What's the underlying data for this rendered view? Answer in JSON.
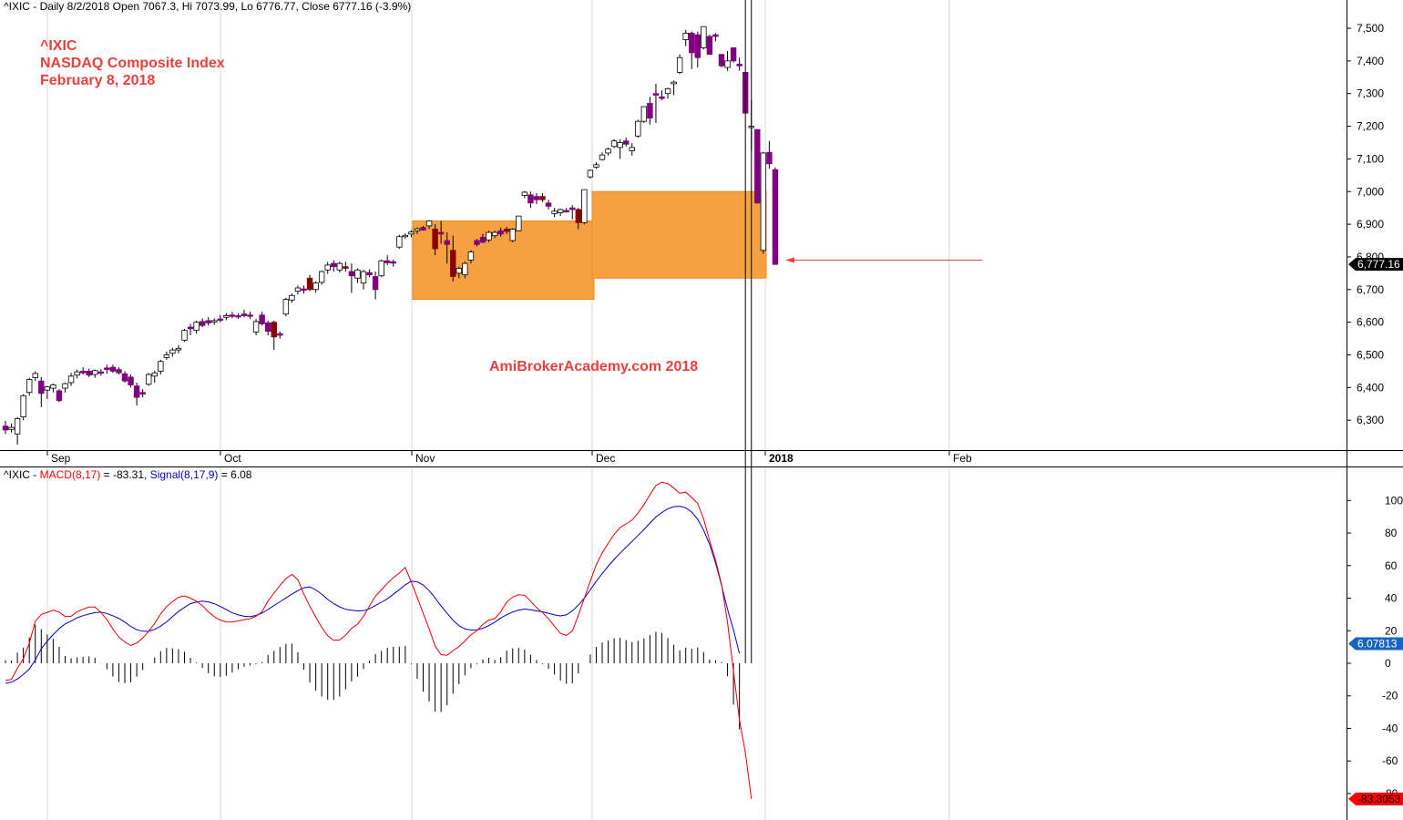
{
  "header": {
    "price_info": "^IXIC - Daily 8/2/2018 Open 7067.3, Hi 7073.99, Lo 6776.77, Close 6777.16 (-3.9%)",
    "macd_prefix": "^IXIC - ",
    "macd_label": "MACD(8,17)",
    "macd_value": " = -83.31, ",
    "signal_label": "Signal(8,17,9)",
    "signal_value": " = 6.08"
  },
  "annotation": {
    "symbol": "^IXIC",
    "name": "NASDAQ Composite Index",
    "date": "February 8, 2018"
  },
  "watermark": "AmiBrokerAcademy.com 2018",
  "colors": {
    "up_candle": "#ffffff",
    "down_candle": "#800080",
    "down_candle_dark": "#8b0000",
    "box_fill": "#f7a041",
    "annotation": "#e8413c",
    "macd_line": "#e00000",
    "signal_line": "#0000c0",
    "price_badge": "#000000",
    "macd_badge": "#ff0000",
    "signal_badge": "#1565c0"
  },
  "chart_data": [
    {
      "type": "candlestick",
      "title": "^IXIC",
      "x_tick_labels": [
        "Sep",
        "Oct",
        "Nov",
        "Dec",
        "2018",
        "Feb"
      ],
      "y_tick_labels": [
        "6,300",
        "6,400",
        "6,500",
        "6,600",
        "6,700",
        "6,800",
        "6,900",
        "7,000",
        "7,100",
        "7,200",
        "7,300",
        "7,400",
        "7,500"
      ],
      "ylim": [
        6200,
        7530
      ],
      "last_price_label": "6,777.16",
      "grid": "vertical at month starts",
      "highlight_boxes": [
        {
          "from": "Nov",
          "to": "end of Nov",
          "low": 6670,
          "high": 6910
        },
        {
          "from": "Dec",
          "to": "end of Dec",
          "low": 6735,
          "high": 7000
        }
      ],
      "arrow": {
        "from_price": 6790,
        "to_price": 6790,
        "direction": "left"
      },
      "ohlc": [
        [
          6282,
          6298,
          6258,
          6270
        ],
        [
          6272,
          6290,
          6262,
          6278
        ],
        [
          6258,
          6310,
          6225,
          6305
        ],
        [
          6310,
          6380,
          6300,
          6375
        ],
        [
          6385,
          6430,
          6375,
          6425
        ],
        [
          6430,
          6450,
          6420,
          6443
        ],
        [
          6420,
          6432,
          6340,
          6382
        ],
        [
          6392,
          6405,
          6365,
          6402
        ],
        [
          6398,
          6412,
          6385,
          6408
        ],
        [
          6390,
          6395,
          6355,
          6360
        ],
        [
          6398,
          6415,
          6385,
          6412
        ],
        [
          6415,
          6445,
          6405,
          6435
        ],
        [
          6438,
          6455,
          6428,
          6448
        ],
        [
          6450,
          6462,
          6440,
          6445
        ],
        [
          6450,
          6458,
          6432,
          6438
        ],
        [
          6440,
          6455,
          6430,
          6452
        ],
        [
          6448,
          6456,
          6436,
          6445
        ],
        [
          6460,
          6470,
          6442,
          6455
        ],
        [
          6462,
          6470,
          6445,
          6450
        ],
        [
          6455,
          6462,
          6440,
          6445
        ],
        [
          6442,
          6450,
          6415,
          6420
        ],
        [
          6432,
          6440,
          6400,
          6408
        ],
        [
          6405,
          6415,
          6345,
          6370
        ],
        [
          6385,
          6395,
          6370,
          6380
        ],
        [
          6410,
          6445,
          6405,
          6440
        ],
        [
          6435,
          6452,
          6415,
          6445
        ],
        [
          6450,
          6485,
          6440,
          6480
        ],
        [
          6492,
          6510,
          6485,
          6500
        ],
        [
          6505,
          6522,
          6495,
          6515
        ],
        [
          6515,
          6530,
          6505,
          6520
        ],
        [
          6545,
          6580,
          6540,
          6575
        ],
        [
          6585,
          6595,
          6560,
          6580
        ],
        [
          6575,
          6605,
          6565,
          6600
        ],
        [
          6602,
          6612,
          6585,
          6590
        ],
        [
          6605,
          6615,
          6590,
          6598
        ],
        [
          6602,
          6612,
          6592,
          6605
        ],
        [
          6610,
          6622,
          6600,
          6606
        ],
        [
          6615,
          6628,
          6606,
          6620
        ],
        [
          6622,
          6632,
          6612,
          6618
        ],
        [
          6620,
          6628,
          6610,
          6616
        ],
        [
          6625,
          6638,
          6615,
          6620
        ],
        [
          6622,
          6632,
          6610,
          6618
        ],
        [
          6570,
          6610,
          6560,
          6602
        ],
        [
          6622,
          6632,
          6590,
          6595
        ],
        [
          6598,
          6605,
          6560,
          6572
        ],
        [
          6600,
          6605,
          6515,
          6555
        ],
        [
          6565,
          6572,
          6550,
          6560
        ],
        [
          6625,
          6675,
          6618,
          6670
        ],
        [
          6668,
          6688,
          6660,
          6682
        ],
        [
          6695,
          6712,
          6685,
          6705
        ],
        [
          6702,
          6712,
          6688,
          6698
        ],
        [
          6735,
          6745,
          6695,
          6700
        ],
        [
          6700,
          6725,
          6690,
          6720
        ],
        [
          6722,
          6758,
          6715,
          6755
        ],
        [
          6760,
          6785,
          6748,
          6775
        ],
        [
          6780,
          6790,
          6755,
          6770
        ],
        [
          6760,
          6785,
          6752,
          6780
        ],
        [
          6770,
          6785,
          6755,
          6765
        ],
        [
          6755,
          6780,
          6690,
          6742
        ],
        [
          6735,
          6765,
          6720,
          6760
        ],
        [
          6720,
          6760,
          6700,
          6755
        ],
        [
          6752,
          6762,
          6738,
          6745
        ],
        [
          6740,
          6755,
          6670,
          6700
        ],
        [
          6742,
          6792,
          6738,
          6788
        ],
        [
          6788,
          6805,
          6775,
          6782
        ],
        [
          6785,
          6792,
          6770,
          6782
        ],
        [
          6830,
          6868,
          6825,
          6862
        ],
        [
          6862,
          6872,
          6855,
          6866
        ],
        [
          6870,
          6882,
          6860,
          6876
        ],
        [
          6880,
          6890,
          6870,
          6886
        ],
        [
          6890,
          6895,
          6880,
          6882
        ],
        [
          6895,
          6912,
          6885,
          6910
        ],
        [
          6885,
          6900,
          6805,
          6825
        ],
        [
          6875,
          6910,
          6840,
          6870
        ],
        [
          6850,
          6875,
          6780,
          6838
        ],
        [
          6820,
          6865,
          6725,
          6740
        ],
        [
          6750,
          6770,
          6735,
          6765
        ],
        [
          6745,
          6785,
          6735,
          6780
        ],
        [
          6790,
          6820,
          6780,
          6815
        ],
        [
          6850,
          6855,
          6832,
          6838
        ],
        [
          6860,
          6870,
          6842,
          6845
        ],
        [
          6852,
          6880,
          6845,
          6875
        ],
        [
          6865,
          6880,
          6858,
          6875
        ],
        [
          6880,
          6890,
          6862,
          6870
        ],
        [
          6885,
          6892,
          6870,
          6878
        ],
        [
          6850,
          6888,
          6845,
          6885
        ],
        [
          6880,
          6925,
          6878,
          6925
        ],
        [
          6988,
          7002,
          6980,
          6998
        ],
        [
          6990,
          7000,
          6950,
          6965
        ],
        [
          6985,
          6995,
          6962,
          6975
        ],
        [
          6985,
          6995,
          6968,
          6975
        ],
        [
          6965,
          6975,
          6945,
          6955
        ],
        [
          6932,
          6950,
          6922,
          6940
        ],
        [
          6935,
          6948,
          6925,
          6945
        ],
        [
          6942,
          6950,
          6935,
          6940
        ],
        [
          6950,
          6958,
          6915,
          6945
        ],
        [
          6945,
          6950,
          6885,
          6905
        ],
        [
          6905,
          7006,
          6900,
          7006
        ],
        [
          7045,
          7068,
          7040,
          7065
        ],
        [
          7075,
          7090,
          7070,
          7082
        ],
        [
          7098,
          7120,
          7095,
          7112
        ],
        [
          7118,
          7135,
          7110,
          7130
        ],
        [
          7138,
          7160,
          7133,
          7155
        ],
        [
          7135,
          7160,
          7100,
          7150
        ],
        [
          7155,
          7165,
          7138,
          7145
        ],
        [
          7125,
          7148,
          7110,
          7135
        ],
        [
          7170,
          7220,
          7165,
          7215
        ],
        [
          7215,
          7260,
          7210,
          7260
        ],
        [
          7270,
          7290,
          7205,
          7225
        ],
        [
          7300,
          7330,
          7210,
          7295
        ],
        [
          7290,
          7310,
          7280,
          7285
        ],
        [
          7300,
          7318,
          7285,
          7315
        ],
        [
          7330,
          7340,
          7295,
          7335
        ],
        [
          7365,
          7420,
          7360,
          7410
        ],
        [
          7465,
          7495,
          7445,
          7485
        ],
        [
          7485,
          7490,
          7375,
          7425
        ],
        [
          7480,
          7490,
          7380,
          7410
        ],
        [
          7440,
          7505,
          7435,
          7505
        ],
        [
          7475,
          7480,
          7420,
          7420
        ],
        [
          7480,
          7485,
          7460,
          7475
        ],
        [
          7420,
          7420,
          7380,
          7385
        ],
        [
          7380,
          7430,
          7370,
          7400
        ],
        [
          7440,
          7440,
          7395,
          7400
        ],
        [
          7390,
          7410,
          7370,
          7385
        ],
        [
          7365,
          7365,
          7240,
          7240
        ],
        [
          7200,
          7280,
          7125,
          7200
        ],
        [
          7190,
          7190,
          6963,
          6965
        ],
        [
          6820,
          7122,
          6810,
          7118
        ],
        [
          7120,
          7155,
          7070,
          7085
        ],
        [
          7067,
          7074,
          6777,
          6777
        ]
      ]
    },
    {
      "type": "line",
      "title": "MACD(8,17), Signal(8,17,9)",
      "y_tick_labels": [
        "-80",
        "-60",
        "-40",
        "-20",
        "0",
        "20",
        "40",
        "60",
        "80",
        "100"
      ],
      "ylim": [
        -88,
        120
      ],
      "badges": [
        "6.07813",
        "-83.3053"
      ],
      "series": [
        {
          "name": "MACD(8,17)",
          "values": [
            -10.5,
            -9.9,
            -3.1,
            2.7,
            12.4,
            25.9,
            30.0,
            31.3,
            32.6,
            31.4,
            28.7,
            28.9,
            31.7,
            33.2,
            34.5,
            34.5,
            31.3,
            26.9,
            21.1,
            16.1,
            13.1,
            10.9,
            12.4,
            15.5,
            19.7,
            24.5,
            30.3,
            34.8,
            37.9,
            40.5,
            41.4,
            40.0,
            38.1,
            35.4,
            31.6,
            28.6,
            26.6,
            25.4,
            25.3,
            26.0,
            26.8,
            27.4,
            28.9,
            31.7,
            38.2,
            43.1,
            47.8,
            52.0,
            54.6,
            51.4,
            42.5,
            35.1,
            28.4,
            22.1,
            16.9,
            14.1,
            14.3,
            17.2,
            21.5,
            24.0,
            28.8,
            35.2,
            41.2,
            45.1,
            49.1,
            52.6,
            55.4,
            58.8,
            50.0,
            40.5,
            30.7,
            21.1,
            10.5,
            5.3,
            4.9,
            7.8,
            10.3,
            13.7,
            17.4,
            20.1,
            23.9,
            26.5,
            27.4,
            31.6,
            37.6,
            40.7,
            42.1,
            41.8,
            38.2,
            34.2,
            31.2,
            27.3,
            22.8,
            18.4,
            17.1,
            19.9,
            29.5,
            40.0,
            50.5,
            60.4,
            67.8,
            73.6,
            79.2,
            83.3,
            85.6,
            87.9,
            92.3,
            97.5,
            103.5,
            109.1,
            111.3,
            110.4,
            107.6,
            104.4,
            105.1,
            101.8,
            98.2,
            88.6,
            75.3,
            63.5,
            48.6,
            25.4,
            -4.9,
            -34.5,
            -55.0,
            -83.3
          ]
        },
        {
          "name": "Signal(8,17,9)",
          "values": [
            -12.3,
            -11.6,
            -9.7,
            -6.9,
            -3.5,
            2.1,
            9.0,
            13.6,
            17.6,
            21.3,
            24.2,
            25.9,
            28.0,
            29.2,
            30.3,
            31.1,
            31.4,
            30.6,
            29.2,
            27.6,
            25.3,
            22.6,
            20.6,
            19.7,
            19.6,
            20.9,
            22.8,
            25.4,
            28.7,
            31.8,
            34.3,
            36.6,
            37.6,
            38.2,
            37.7,
            36.6,
            34.9,
            33.0,
            31.0,
            29.7,
            28.9,
            28.7,
            29.4,
            30.9,
            33.0,
            35.5,
            37.8,
            40.1,
            42.5,
            44.6,
            46.4,
            46.9,
            45.1,
            42.5,
            39.2,
            36.6,
            34.7,
            33.2,
            32.6,
            32.2,
            32.3,
            33.5,
            35.5,
            37.5,
            39.6,
            42.4,
            45.2,
            48.2,
            50.4,
            50.0,
            48.1,
            44.6,
            40.1,
            35.2,
            30.7,
            26.4,
            23.1,
            21.1,
            20.4,
            20.6,
            21.5,
            23.1,
            25.3,
            27.8,
            29.8,
            31.5,
            32.7,
            33.3,
            32.9,
            32.2,
            31.6,
            30.7,
            29.7,
            29.1,
            29.7,
            32.2,
            35.7,
            40.0,
            45.1,
            50.3,
            55.1,
            59.6,
            63.8,
            67.6,
            71.3,
            74.9,
            78.5,
            82.2,
            86.1,
            89.8,
            92.6,
            94.9,
            96.2,
            96.5,
            95.5,
            92.9,
            88.5,
            81.7,
            73.0,
            61.6,
            48.0,
            33.3,
            20.5,
            6.1
          ]
        }
      ],
      "histogram": "MACD minus Signal"
    }
  ]
}
